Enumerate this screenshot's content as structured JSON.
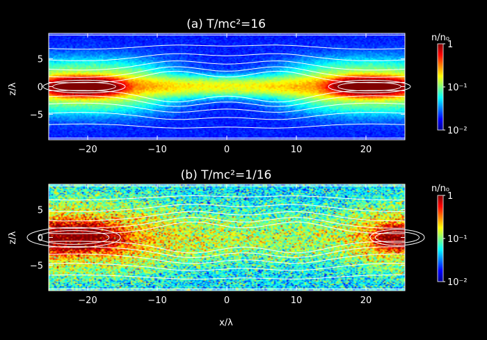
{
  "chart_data": [
    {
      "type": "heatmap",
      "title": "(a) T/mc²=16",
      "xlabel": "",
      "ylabel": "z/λ",
      "xlim": [
        -25.6,
        25.6
      ],
      "ylim": [
        -9.6,
        9.6
      ],
      "x_ticks": [
        -20,
        -10,
        0,
        10,
        20
      ],
      "y_ticks": [
        -5,
        0,
        5
      ],
      "colorbar": {
        "label": "n/n₀",
        "scale": "log",
        "range": [
          0.01,
          1
        ],
        "ticks": [
          "1",
          "10⁻¹",
          "10⁻²"
        ],
        "tick_values": [
          1,
          0.1,
          0.01
        ]
      },
      "colormap": [
        "#00008f",
        "#0000ff",
        "#0080ff",
        "#00ffff",
        "#80ff80",
        "#ffff00",
        "#ff8000",
        "#ff0000",
        "#800000"
      ],
      "density_model": {
        "background": 0.02,
        "current_sheet": {
          "z_center": 0,
          "density": 0.15,
          "halfwidth_z": 1.5
        },
        "plasmoids": [
          {
            "x_center": -20.5,
            "z_center": 0,
            "peak_density": 1.0,
            "length_x": 11,
            "halfwidth_z": 1.6
          },
          {
            "x_center": 20.5,
            "z_center": 0,
            "peak_density": 1.0,
            "length_x": 11,
            "halfwidth_z": 1.6
          }
        ],
        "x_points": [
          -7.5,
          7.5
        ],
        "noise": "low"
      },
      "field_lines": {
        "color": "#ffffff",
        "count": 13,
        "x_point_locations": [
          -7.5,
          7.5
        ],
        "o_point_locations": [
          -20.5,
          20.5
        ]
      }
    },
    {
      "type": "heatmap",
      "title": "(b) T/mc²=1/16",
      "xlabel": "x/λ",
      "ylabel": "z/λ",
      "xlim": [
        -25.6,
        25.6
      ],
      "ylim": [
        -9.6,
        9.6
      ],
      "x_ticks": [
        -20,
        -10,
        0,
        10,
        20
      ],
      "y_ticks": [
        -5,
        0,
        5
      ],
      "colorbar": {
        "label": "n/n₀",
        "scale": "log",
        "range": [
          0.01,
          1
        ],
        "ticks": [
          "1",
          "10⁻¹",
          "10⁻²"
        ],
        "tick_values": [
          1,
          0.1,
          0.01
        ]
      },
      "colormap": [
        "#00008f",
        "#0000ff",
        "#0080ff",
        "#00ffff",
        "#80ff80",
        "#ffff00",
        "#ff8000",
        "#ff0000",
        "#800000"
      ],
      "density_model": {
        "background": 0.05,
        "current_sheet": {
          "z_center": 0,
          "density": 0.08,
          "halfwidth_z": 4
        },
        "plasmoids": [
          {
            "x_center": -22,
            "z_center": 0,
            "peak_density": 1.0,
            "length_x": 13,
            "halfwidth_z": 2.5
          },
          {
            "x_center": 24.5,
            "z_center": 0,
            "peak_density": 1.0,
            "length_x": 6,
            "halfwidth_z": 2.0
          }
        ],
        "x_points": [
          -5,
          10
        ],
        "noise": "high"
      },
      "field_lines": {
        "color": "#ffffff",
        "count": 13,
        "x_point_locations": [
          -5,
          10
        ],
        "o_point_locations": [
          -22,
          24.5
        ]
      }
    }
  ]
}
